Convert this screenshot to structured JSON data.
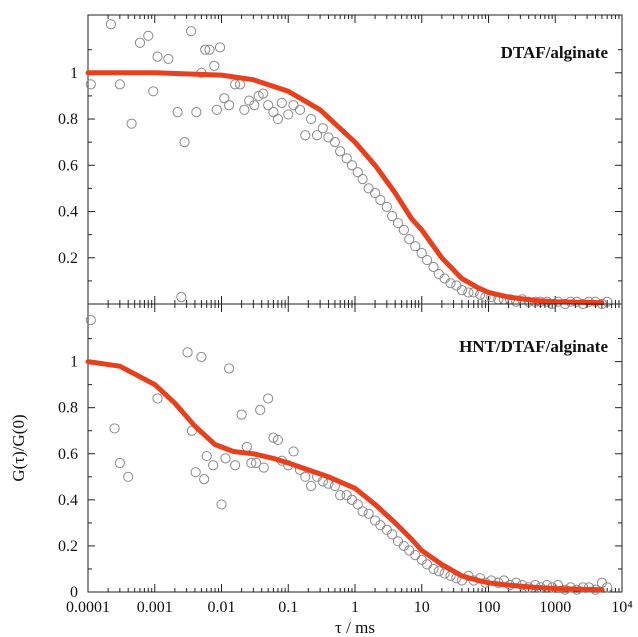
{
  "chart_data": {
    "type": "scatter",
    "x_scale": "log",
    "xlabel": "τ / ms",
    "ylabel": "G(τ)/G(0)",
    "x_ticks": [
      "0.0001",
      "0.001",
      "0.01",
      "0.1",
      "1",
      "10",
      "100",
      "1000",
      "10⁴"
    ],
    "xlim": [
      0.0001,
      10000
    ],
    "panels": [
      {
        "title": "DTAF/alginate",
        "ylim": [
          0,
          1.25
        ],
        "y_ticks": [
          "0.2",
          "0.4",
          "0.6",
          "0.8",
          "1"
        ],
        "fit": {
          "color": "#e8401c",
          "x": [
            0.0001,
            0.001,
            0.01,
            0.03,
            0.1,
            0.3,
            1,
            2,
            4,
            7,
            10,
            20,
            40,
            70,
            100,
            200,
            500,
            1000,
            5000
          ],
          "y": [
            1.0,
            1.0,
            0.99,
            0.97,
            0.92,
            0.84,
            0.7,
            0.6,
            0.48,
            0.37,
            0.32,
            0.2,
            0.11,
            0.07,
            0.05,
            0.03,
            0.015,
            0.01,
            0.005
          ]
        },
        "points": {
          "x": [
            0.00011,
            0.00022,
            0.0003,
            0.00045,
            0.0006,
            0.0008,
            0.00095,
            0.0011,
            0.0016,
            0.0022,
            0.0028,
            0.0035,
            0.0042,
            0.005,
            0.0057,
            0.0066,
            0.0078,
            0.0085,
            0.0095,
            0.011,
            0.013,
            0.016,
            0.019,
            0.022,
            0.026,
            0.031,
            0.036,
            0.042,
            0.05,
            0.06,
            0.07,
            0.08,
            0.1,
            0.12,
            0.15,
            0.18,
            0.22,
            0.27,
            0.33,
            0.4,
            0.5,
            0.6,
            0.75,
            0.9,
            1.1,
            1.3,
            1.6,
            2.0,
            2.4,
            3.0,
            3.6,
            4.4,
            5.4,
            6.5,
            8,
            10,
            12,
            15,
            18,
            22,
            27,
            33,
            40,
            50,
            60,
            75,
            90,
            110,
            140,
            170,
            210,
            260,
            320,
            400,
            500,
            600,
            750,
            900,
            1100,
            1400,
            1700,
            2100,
            2600,
            3200,
            4000,
            5000,
            6000
          ],
          "y": [
            0.95,
            1.21,
            0.95,
            0.78,
            1.13,
            1.16,
            0.92,
            1.07,
            1.06,
            0.83,
            0.7,
            1.18,
            0.83,
            1.0,
            1.1,
            1.1,
            1.03,
            0.84,
            1.11,
            0.89,
            0.86,
            0.95,
            0.95,
            0.84,
            0.88,
            0.86,
            0.9,
            0.91,
            0.86,
            0.83,
            0.8,
            0.87,
            0.82,
            0.86,
            0.84,
            0.73,
            0.8,
            0.73,
            0.76,
            0.72,
            0.7,
            0.66,
            0.63,
            0.6,
            0.57,
            0.54,
            0.5,
            0.48,
            0.45,
            0.42,
            0.38,
            0.35,
            0.32,
            0.28,
            0.25,
            0.22,
            0.19,
            0.16,
            0.13,
            0.11,
            0.09,
            0.08,
            0.06,
            0.05,
            0.05,
            0.04,
            0.03,
            0.03,
            0.02,
            0.02,
            0.02,
            0.01,
            0.02,
            0.01,
            0.01,
            0.01,
            0.01,
            0.0,
            0.01,
            0.0,
            0.01,
            0.01,
            0.0,
            0.01,
            0.01,
            0.0,
            0.01
          ]
        }
      },
      {
        "title": "HNT/DTAF/alginate",
        "ylim": [
          0,
          1.25
        ],
        "y_ticks": [
          "0",
          "0.2",
          "0.4",
          "0.6",
          "0.8",
          "1"
        ],
        "fit": {
          "color": "#e8401c",
          "x": [
            0.0001,
            0.0003,
            0.001,
            0.002,
            0.004,
            0.008,
            0.015,
            0.03,
            0.06,
            0.1,
            0.2,
            0.4,
            1,
            2,
            4,
            7,
            10,
            20,
            40,
            70,
            100,
            200,
            500,
            1000,
            5000
          ],
          "y": [
            1.0,
            0.98,
            0.9,
            0.82,
            0.72,
            0.64,
            0.61,
            0.6,
            0.58,
            0.56,
            0.53,
            0.5,
            0.45,
            0.38,
            0.3,
            0.23,
            0.18,
            0.12,
            0.07,
            0.05,
            0.04,
            0.03,
            0.02,
            0.015,
            0.01
          ]
        },
        "points": {
          "x": [
            0.00011,
            0.00025,
            0.0003,
            0.0004,
            0.0011,
            0.0025,
            0.0031,
            0.0036,
            0.0041,
            0.005,
            0.0055,
            0.006,
            0.0075,
            0.01,
            0.0115,
            0.013,
            0.016,
            0.02,
            0.024,
            0.028,
            0.033,
            0.038,
            0.043,
            0.05,
            0.06,
            0.07,
            0.08,
            0.1,
            0.12,
            0.15,
            0.18,
            0.22,
            0.27,
            0.33,
            0.4,
            0.5,
            0.6,
            0.75,
            0.9,
            1.1,
            1.3,
            1.6,
            2.0,
            2.4,
            3.0,
            3.6,
            4.4,
            5.4,
            6.5,
            8,
            10,
            12,
            15,
            18,
            22,
            27,
            33,
            40,
            50,
            60,
            75,
            90,
            110,
            140,
            170,
            210,
            260,
            320,
            400,
            500,
            600,
            750,
            900,
            1100,
            1400,
            1700,
            2100,
            2600,
            3200,
            4000,
            5000,
            6000
          ],
          "y": [
            1.18,
            0.71,
            0.56,
            0.5,
            0.84,
            1.28,
            1.04,
            0.7,
            0.52,
            1.02,
            0.49,
            0.59,
            0.55,
            0.38,
            0.58,
            0.97,
            0.55,
            0.77,
            0.63,
            0.56,
            0.56,
            0.79,
            0.54,
            0.84,
            0.67,
            0.66,
            0.57,
            0.55,
            0.61,
            0.53,
            0.5,
            0.46,
            0.5,
            0.48,
            0.47,
            0.46,
            0.42,
            0.42,
            0.4,
            0.38,
            0.35,
            0.34,
            0.31,
            0.29,
            0.27,
            0.25,
            0.22,
            0.2,
            0.18,
            0.16,
            0.14,
            0.12,
            0.1,
            0.09,
            0.08,
            0.07,
            0.06,
            0.05,
            0.07,
            0.05,
            0.06,
            0.04,
            0.05,
            0.04,
            0.05,
            0.03,
            0.04,
            0.03,
            0.02,
            0.03,
            0.02,
            0.03,
            0.02,
            0.03,
            0.01,
            0.02,
            0.01,
            0.02,
            0.02,
            0.01,
            0.04,
            0.02
          ]
        }
      }
    ]
  }
}
